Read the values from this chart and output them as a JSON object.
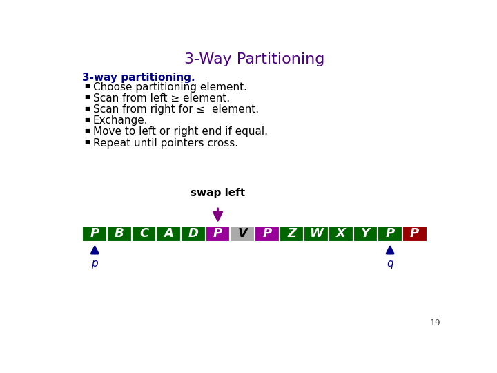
{
  "title": "3-Way Partitioning",
  "title_color": "#4b0082",
  "title_fontsize": 16,
  "subtitle": "3-way partitioning.",
  "subtitle_color": "#00008b",
  "subtitle_fontsize": 11,
  "bullets": [
    "Choose partitioning element.",
    "Scan from left ≥ element.",
    "Scan from right for ≤  element.",
    "Exchange.",
    "Move to left or right end if equal.",
    "Repeat until pointers cross."
  ],
  "bullet_color": "#000000",
  "bullet_fontsize": 11,
  "array_elements": [
    "P",
    "B",
    "C",
    "A",
    "D",
    "P",
    "V",
    "P",
    "Z",
    "W",
    "X",
    "Y",
    "P",
    "P"
  ],
  "array_colors": [
    "#006600",
    "#006600",
    "#006600",
    "#006600",
    "#006600",
    "#990099",
    "#aaaaaa",
    "#990099",
    "#006600",
    "#006600",
    "#006600",
    "#006600",
    "#006600",
    "#990000"
  ],
  "array_text_colors": [
    "#ffffff",
    "#ffffff",
    "#ffffff",
    "#ffffff",
    "#ffffff",
    "#ffffff",
    "#000000",
    "#ffffff",
    "#ffffff",
    "#ffffff",
    "#ffffff",
    "#ffffff",
    "#ffffff",
    "#ffffff"
  ],
  "swap_left_label": "swap left",
  "swap_left_color": "#000000",
  "swap_arrow_color": "#800080",
  "swap_arrow_index": 5,
  "p_arrow_index": 0,
  "q_arrow_index": 12,
  "arrow_color": "#00008b",
  "background_color": "#ffffff",
  "page_number": "19"
}
